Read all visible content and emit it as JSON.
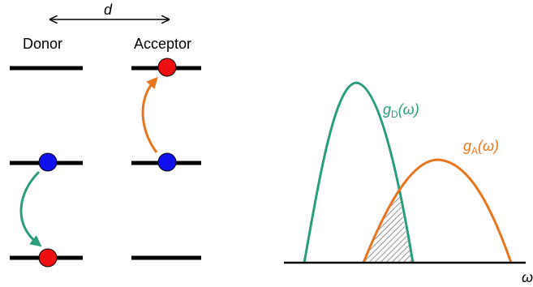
{
  "distance_label": "d",
  "donor_label": "Donor",
  "acceptor_label": "Acceptor",
  "gD": {
    "main": "g",
    "sub": "D",
    "arg": "(ω)",
    "color": "#2a9d7c"
  },
  "gA": {
    "main": "g",
    "sub": "A",
    "arg": "(ω)",
    "color": "#e8761e"
  },
  "axis_label": "ω",
  "colors": {
    "level": "#000000",
    "donor_dot": "#1010ee",
    "acceptor_dot": "#ee1010",
    "donor_arrow": "#2a9d7c",
    "acceptor_arrow": "#e8761e",
    "overlap_hatch": "#777777"
  }
}
